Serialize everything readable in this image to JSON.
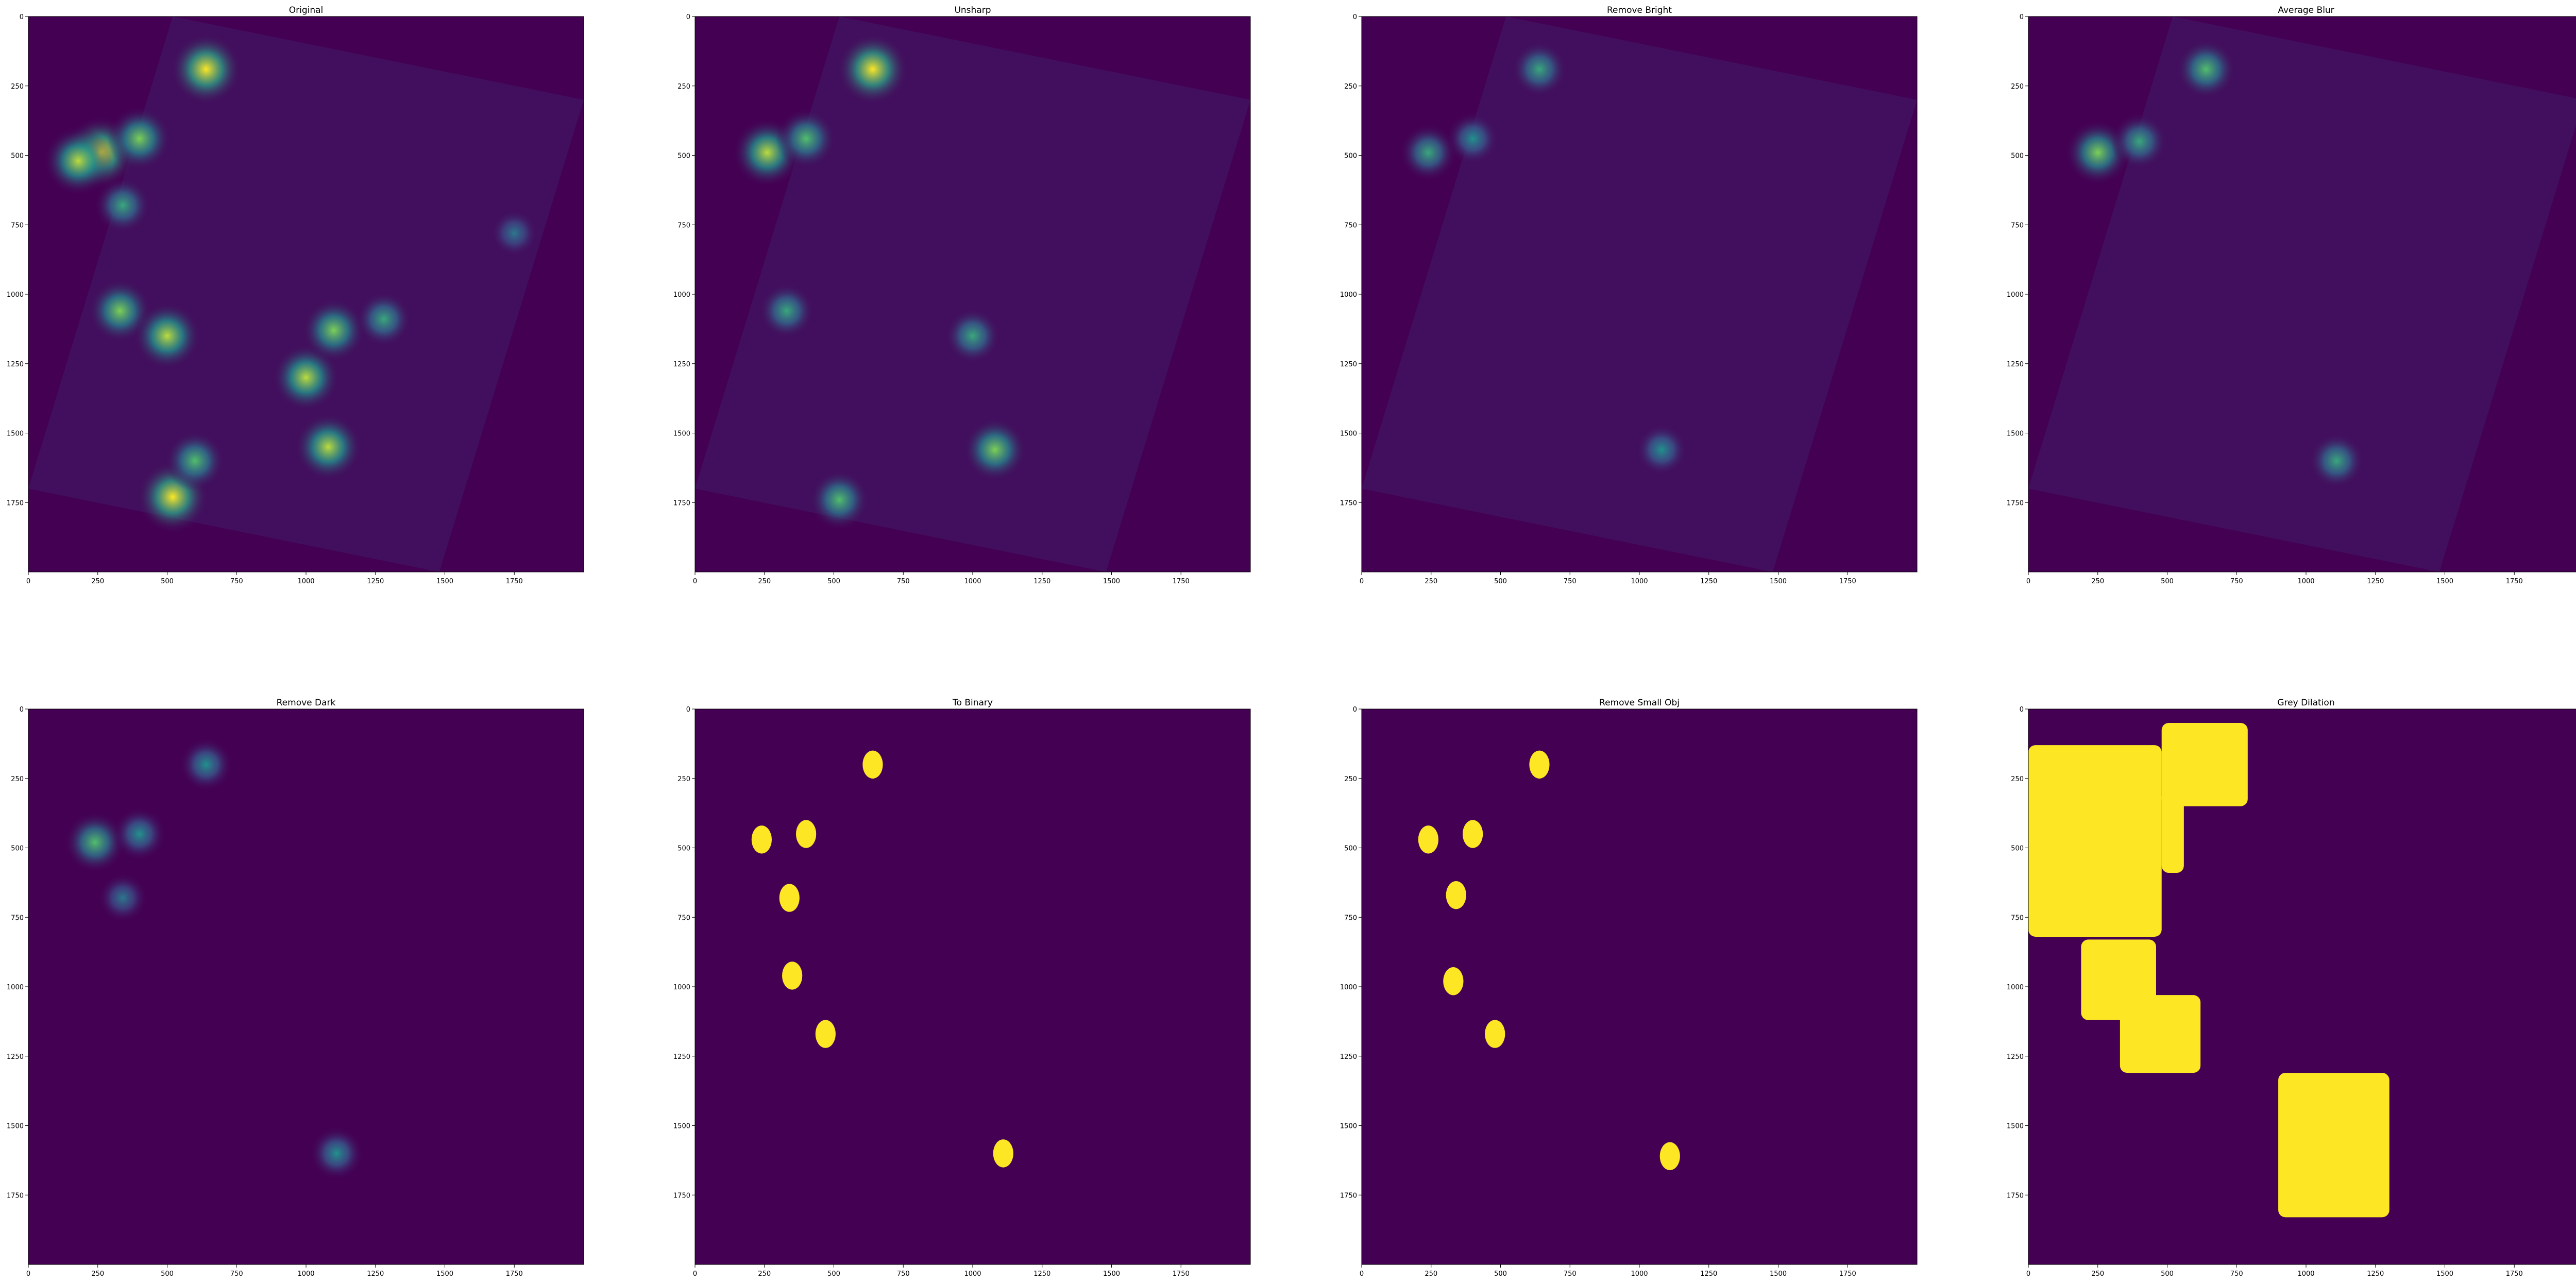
{
  "colors": {
    "background": "#440154",
    "spot_low": "#3b528b",
    "spot_mid": "#21918c",
    "spot_high": "#5ec962",
    "spot_max": "#fde725"
  },
  "colormap": "viridis",
  "chart_data": [
    {
      "type": "heatmap",
      "title": "Original",
      "row": 0,
      "col": 0,
      "xlim": [
        0,
        2000
      ],
      "ylim": [
        2000,
        0
      ],
      "xticks": [
        0,
        250,
        500,
        750,
        1000,
        1250,
        1500,
        1750
      ],
      "yticks": [
        0,
        250,
        500,
        750,
        1000,
        1250,
        1500,
        1750
      ],
      "rotated_content": true,
      "bright_regions": [
        {
          "x": 640,
          "y": 190,
          "intensity": 1.0
        },
        {
          "x": 260,
          "y": 490,
          "intensity": 1.0
        },
        {
          "x": 180,
          "y": 520,
          "intensity": 0.9
        },
        {
          "x": 400,
          "y": 440,
          "intensity": 0.8
        },
        {
          "x": 340,
          "y": 680,
          "intensity": 0.6
        },
        {
          "x": 330,
          "y": 1060,
          "intensity": 0.8
        },
        {
          "x": 500,
          "y": 1150,
          "intensity": 0.9
        },
        {
          "x": 1000,
          "y": 1300,
          "intensity": 0.9
        },
        {
          "x": 1100,
          "y": 1130,
          "intensity": 0.8
        },
        {
          "x": 1080,
          "y": 1550,
          "intensity": 0.9
        },
        {
          "x": 520,
          "y": 1730,
          "intensity": 1.0
        },
        {
          "x": 600,
          "y": 1600,
          "intensity": 0.7
        },
        {
          "x": 1280,
          "y": 1090,
          "intensity": 0.6
        },
        {
          "x": 1750,
          "y": 780,
          "intensity": 0.4
        }
      ]
    },
    {
      "type": "heatmap",
      "title": "Unsharp",
      "row": 0,
      "col": 1,
      "xlim": [
        0,
        2000
      ],
      "ylim": [
        2000,
        0
      ],
      "xticks": [
        0,
        250,
        500,
        750,
        1000,
        1250,
        1500,
        1750
      ],
      "yticks": [
        0,
        250,
        500,
        750,
        1000,
        1250,
        1500,
        1750
      ],
      "rotated_content": true,
      "bright_regions": [
        {
          "x": 640,
          "y": 190,
          "intensity": 1.0
        },
        {
          "x": 260,
          "y": 490,
          "intensity": 0.9
        },
        {
          "x": 400,
          "y": 440,
          "intensity": 0.7
        },
        {
          "x": 330,
          "y": 1060,
          "intensity": 0.6
        },
        {
          "x": 1000,
          "y": 1150,
          "intensity": 0.6
        },
        {
          "x": 1080,
          "y": 1560,
          "intensity": 0.8
        },
        {
          "x": 520,
          "y": 1740,
          "intensity": 0.7
        }
      ]
    },
    {
      "type": "heatmap",
      "title": "Remove Bright",
      "row": 0,
      "col": 2,
      "xlim": [
        0,
        2000
      ],
      "ylim": [
        2000,
        0
      ],
      "xticks": [
        0,
        250,
        500,
        750,
        1000,
        1250,
        1500,
        1750
      ],
      "yticks": [
        0,
        250,
        500,
        750,
        1000,
        1250,
        1500,
        1750
      ],
      "rotated_content": true,
      "bright_regions": [
        {
          "x": 640,
          "y": 190,
          "intensity": 0.6
        },
        {
          "x": 240,
          "y": 490,
          "intensity": 0.6
        },
        {
          "x": 400,
          "y": 440,
          "intensity": 0.5
        },
        {
          "x": 1080,
          "y": 1560,
          "intensity": 0.5
        }
      ]
    },
    {
      "type": "heatmap",
      "title": "Average Blur",
      "row": 0,
      "col": 3,
      "xlim": [
        0,
        2000
      ],
      "ylim": [
        2000,
        0
      ],
      "xticks": [
        0,
        250,
        500,
        750,
        1000,
        1250,
        1500,
        1750
      ],
      "yticks": [
        0,
        250,
        500,
        750,
        1000,
        1250,
        1500,
        1750
      ],
      "rotated_content": true,
      "bright_regions": [
        {
          "x": 640,
          "y": 190,
          "intensity": 0.7
        },
        {
          "x": 250,
          "y": 490,
          "intensity": 0.8
        },
        {
          "x": 400,
          "y": 450,
          "intensity": 0.6
        },
        {
          "x": 1110,
          "y": 1600,
          "intensity": 0.6
        }
      ]
    },
    {
      "type": "heatmap",
      "title": "Remove Dark",
      "row": 1,
      "col": 0,
      "xlim": [
        0,
        2000
      ],
      "ylim": [
        2000,
        0
      ],
      "xticks": [
        0,
        250,
        500,
        750,
        1000,
        1250,
        1500,
        1750
      ],
      "yticks": [
        0,
        250,
        500,
        750,
        1000,
        1250,
        1500,
        1750
      ],
      "bright_regions": [
        {
          "x": 640,
          "y": 200,
          "intensity": 0.5
        },
        {
          "x": 240,
          "y": 480,
          "intensity": 0.7
        },
        {
          "x": 400,
          "y": 450,
          "intensity": 0.5
        },
        {
          "x": 340,
          "y": 680,
          "intensity": 0.4
        },
        {
          "x": 1110,
          "y": 1600,
          "intensity": 0.5
        }
      ]
    },
    {
      "type": "heatmap",
      "title": "To Binary",
      "row": 1,
      "col": 1,
      "xlim": [
        0,
        2000
      ],
      "ylim": [
        2000,
        0
      ],
      "xticks": [
        0,
        250,
        500,
        750,
        1000,
        1250,
        1500,
        1750
      ],
      "yticks": [
        0,
        250,
        500,
        750,
        1000,
        1250,
        1500,
        1750
      ],
      "binary_regions": [
        {
          "x": 640,
          "y": 200
        },
        {
          "x": 240,
          "y": 470
        },
        {
          "x": 400,
          "y": 450
        },
        {
          "x": 340,
          "y": 680
        },
        {
          "x": 350,
          "y": 960
        },
        {
          "x": 470,
          "y": 1170
        },
        {
          "x": 1110,
          "y": 1600
        }
      ]
    },
    {
      "type": "heatmap",
      "title": "Remove Small Obj",
      "row": 1,
      "col": 2,
      "xlim": [
        0,
        2000
      ],
      "ylim": [
        2000,
        0
      ],
      "xticks": [
        0,
        250,
        500,
        750,
        1000,
        1250,
        1500,
        1750
      ],
      "yticks": [
        0,
        250,
        500,
        750,
        1000,
        1250,
        1500,
        1750
      ],
      "binary_regions": [
        {
          "x": 640,
          "y": 200
        },
        {
          "x": 240,
          "y": 470
        },
        {
          "x": 400,
          "y": 450
        },
        {
          "x": 340,
          "y": 670
        },
        {
          "x": 330,
          "y": 980
        },
        {
          "x": 480,
          "y": 1170
        },
        {
          "x": 1110,
          "y": 1610
        }
      ]
    },
    {
      "type": "heatmap",
      "title": "Grey Dilation",
      "row": 1,
      "col": 3,
      "xlim": [
        0,
        2000
      ],
      "ylim": [
        2000,
        0
      ],
      "xticks": [
        0,
        250,
        500,
        750,
        1000,
        1250,
        1500,
        1750
      ],
      "yticks": [
        0,
        250,
        500,
        750,
        1000,
        1250,
        1500,
        1750
      ],
      "dilated_regions": [
        {
          "x0": 0,
          "y0": 130,
          "x1": 480,
          "y1": 820
        },
        {
          "x0": 480,
          "y0": 50,
          "x1": 790,
          "y1": 350
        },
        {
          "x0": 480,
          "y0": 290,
          "x1": 560,
          "y1": 590
        },
        {
          "x0": 190,
          "y0": 830,
          "x1": 460,
          "y1": 1120
        },
        {
          "x0": 330,
          "y0": 1030,
          "x1": 620,
          "y1": 1310
        },
        {
          "x0": 900,
          "y0": 1310,
          "x1": 1300,
          "y1": 1830
        }
      ]
    }
  ]
}
